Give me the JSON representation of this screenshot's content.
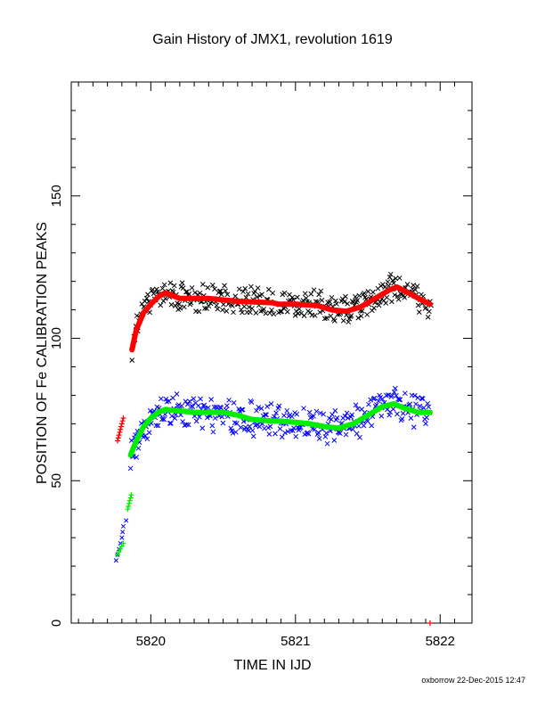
{
  "page": {
    "title": "Gain History of JMX1, revolution 1619",
    "footer": "oxborrow 22-Dec-2015 12:47"
  },
  "colors": {
    "upper_scatter": "#000000",
    "upper_fit": "#ff0000",
    "lower_scatter": "#0000ff",
    "lower_fit": "#00ee00"
  },
  "chart_data": {
    "type": "scatter",
    "title": "Gain History of JMX1, revolution 1619",
    "xlabel": "TIME IN IJD",
    "ylabel": "POSITION OF Fe CALIBRATION PEAKS",
    "xlim": [
      5819.45,
      5822.22
    ],
    "ylim": [
      0,
      190
    ],
    "x_ticks": [
      5820,
      5821,
      5822
    ],
    "y_ticks": [
      0,
      50,
      100,
      150
    ],
    "x_tick_labels": [
      "5820",
      "5821",
      "5822"
    ],
    "y_tick_labels": [
      "0",
      "50",
      "100",
      "150"
    ],
    "grid": false,
    "legend": "none",
    "series": [
      {
        "color": "#000000",
        "marker": "x",
        "trend": [
          [
            5819.87,
            98
          ],
          [
            5819.92,
            106
          ],
          [
            5819.98,
            111
          ],
          [
            5820.05,
            114
          ],
          [
            5820.15,
            115
          ],
          [
            5820.3,
            114
          ],
          [
            5820.5,
            114
          ],
          [
            5820.7,
            113
          ],
          [
            5820.85,
            112
          ],
          [
            5821.0,
            112
          ],
          [
            5821.1,
            112
          ],
          [
            5821.2,
            111
          ],
          [
            5821.32,
            110
          ],
          [
            5821.45,
            111
          ],
          [
            5821.55,
            114
          ],
          [
            5821.65,
            117
          ],
          [
            5821.72,
            118
          ],
          [
            5821.8,
            116
          ],
          [
            5821.88,
            113
          ],
          [
            5821.94,
            112
          ]
        ],
        "scatter": 6,
        "start": 5819.87,
        "end": 5821.94,
        "gap": [
          5820.85,
          5820.88
        ]
      },
      {
        "color": "#ff0000",
        "marker": "line",
        "trend": [
          [
            5819.87,
            96
          ],
          [
            5819.9,
            103
          ],
          [
            5819.95,
            109
          ],
          [
            5820.0,
            112
          ],
          [
            5820.05,
            114.5
          ],
          [
            5820.1,
            116
          ],
          [
            5820.15,
            115
          ],
          [
            5820.2,
            114
          ],
          [
            5820.4,
            114
          ],
          [
            5820.6,
            113
          ],
          [
            5820.84,
            112.5
          ],
          [
            5820.88,
            112
          ],
          [
            5821.0,
            112
          ],
          [
            5821.15,
            111.5
          ],
          [
            5821.25,
            110
          ],
          [
            5821.35,
            109.5
          ],
          [
            5821.45,
            111
          ],
          [
            5821.55,
            114
          ],
          [
            5821.65,
            117
          ],
          [
            5821.7,
            118
          ],
          [
            5821.78,
            116
          ],
          [
            5821.85,
            114
          ],
          [
            5821.93,
            112
          ]
        ],
        "early_marks": [
          [
            5819.77,
            64
          ],
          [
            5819.775,
            65
          ],
          [
            5819.78,
            66
          ],
          [
            5819.785,
            67
          ],
          [
            5819.79,
            68
          ],
          [
            5819.795,
            69
          ],
          [
            5819.8,
            70
          ],
          [
            5819.805,
            71
          ],
          [
            5819.81,
            72
          ]
        ],
        "stray_mark": [
          5821.93,
          0
        ]
      },
      {
        "color": "#0000ff",
        "marker": "x",
        "trend": [
          [
            5819.86,
            58
          ],
          [
            5819.9,
            63
          ],
          [
            5819.95,
            68
          ],
          [
            5820.0,
            71
          ],
          [
            5820.05,
            73
          ],
          [
            5820.1,
            74.5
          ],
          [
            5820.2,
            74
          ],
          [
            5820.4,
            74
          ],
          [
            5820.6,
            72
          ],
          [
            5820.8,
            71
          ],
          [
            5820.95,
            71
          ],
          [
            5821.05,
            70
          ],
          [
            5821.15,
            69
          ],
          [
            5821.3,
            68.5
          ],
          [
            5821.4,
            70
          ],
          [
            5821.5,
            73
          ],
          [
            5821.6,
            76
          ],
          [
            5821.68,
            77
          ],
          [
            5821.75,
            75
          ],
          [
            5821.85,
            74
          ],
          [
            5821.93,
            73
          ]
        ],
        "scatter": 7,
        "start": 5819.86,
        "end": 5821.93,
        "early_marks": [
          [
            5819.76,
            22
          ],
          [
            5819.77,
            24
          ],
          [
            5819.78,
            26
          ],
          [
            5819.79,
            28
          ],
          [
            5819.8,
            30
          ],
          [
            5819.805,
            32
          ],
          [
            5819.81,
            34
          ],
          [
            5819.83,
            36
          ]
        ]
      },
      {
        "color": "#00ee00",
        "marker": "line",
        "trend": [
          [
            5819.86,
            59
          ],
          [
            5819.9,
            64
          ],
          [
            5819.95,
            69
          ],
          [
            5820.0,
            72
          ],
          [
            5820.05,
            74
          ],
          [
            5820.1,
            75
          ],
          [
            5820.2,
            74.5
          ],
          [
            5820.3,
            74
          ],
          [
            5820.5,
            74
          ],
          [
            5820.6,
            73
          ],
          [
            5820.7,
            71.5
          ],
          [
            5820.84,
            71
          ],
          [
            5820.88,
            71
          ],
          [
            5821.0,
            70.5
          ],
          [
            5821.1,
            70
          ],
          [
            5821.2,
            69
          ],
          [
            5821.3,
            68.5
          ],
          [
            5821.4,
            70
          ],
          [
            5821.5,
            73
          ],
          [
            5821.6,
            76
          ],
          [
            5821.68,
            77
          ],
          [
            5821.75,
            75.5
          ],
          [
            5821.85,
            74
          ],
          [
            5821.93,
            74
          ]
        ],
        "early_marks": [
          [
            5819.77,
            24
          ],
          [
            5819.78,
            25
          ],
          [
            5819.79,
            26
          ],
          [
            5819.8,
            27
          ],
          [
            5819.81,
            28
          ],
          [
            5819.84,
            40
          ],
          [
            5819.845,
            41
          ],
          [
            5819.85,
            42
          ],
          [
            5819.855,
            43
          ],
          [
            5819.86,
            44
          ],
          [
            5819.865,
            45
          ]
        ]
      }
    ]
  }
}
